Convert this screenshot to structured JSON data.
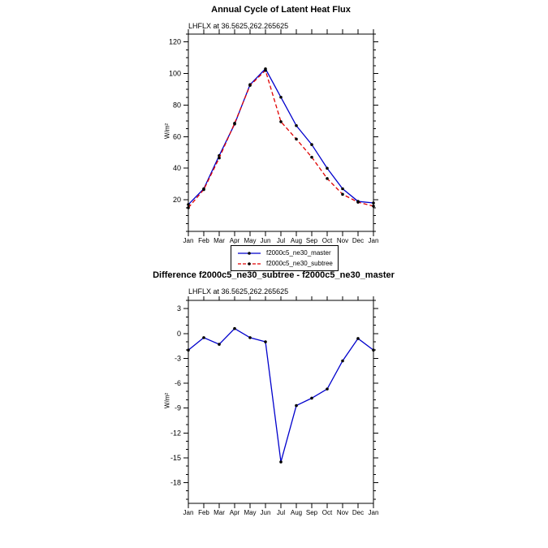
{
  "chart_data": [
    {
      "type": "line",
      "title": "Annual Cycle of Latent Heat Flux",
      "subtitle": "LHFLX at 36.5625,262.265625",
      "ylabel": "W/m²",
      "xlabel": "",
      "categories": [
        "Jan",
        "Feb",
        "Mar",
        "Apr",
        "May",
        "Jun",
        "Jul",
        "Aug",
        "Sep",
        "Oct",
        "Nov",
        "Dec",
        "Jan"
      ],
      "ylim": [
        0,
        125
      ],
      "yticks": [
        20,
        40,
        60,
        80,
        100,
        120
      ],
      "yminor_step": 5,
      "grid": false,
      "legend_position": "below",
      "series": [
        {
          "name": "f2000c5_ne30_master",
          "color": "#0000cc",
          "dash": "solid",
          "marker": "circle",
          "values": [
            17,
            27,
            48,
            68,
            93,
            103,
            85,
            67,
            55,
            40,
            27,
            19,
            18
          ]
        },
        {
          "name": "f2000c5_ne30_subtree",
          "color": "#e00000",
          "dash": "dashed",
          "marker": "circle",
          "values": [
            15,
            26.5,
            46.5,
            68.5,
            92.5,
            102,
            69.5,
            58.5,
            47,
            33.5,
            23.5,
            18.5,
            16
          ]
        }
      ]
    },
    {
      "type": "line",
      "title": "Difference f2000c5_ne30_subtree - f2000c5_ne30_master",
      "subtitle": "LHFLX at 36.5625,262.265625",
      "ylabel": "W/m²",
      "xlabel": "",
      "categories": [
        "Jan",
        "Feb",
        "Mar",
        "Apr",
        "May",
        "Jun",
        "Jul",
        "Aug",
        "Sep",
        "Oct",
        "Nov",
        "Dec",
        "Jan"
      ],
      "ylim": [
        -20.5,
        4
      ],
      "yticks": [
        3,
        0,
        -3,
        -6,
        -9,
        -12,
        -15,
        -18
      ],
      "yminor_step": 1,
      "grid": false,
      "legend_position": "none",
      "series": [
        {
          "name": "difference",
          "color": "#0000cc",
          "dash": "solid",
          "marker": "circle",
          "values": [
            -2,
            -0.5,
            -1.3,
            0.6,
            -0.5,
            -1,
            -15.5,
            -8.7,
            -7.8,
            -6.7,
            -3.3,
            -0.6,
            -2
          ]
        }
      ]
    }
  ],
  "colors": {
    "axis": "#000000",
    "marker": "#000000",
    "background": "#ffffff"
  }
}
